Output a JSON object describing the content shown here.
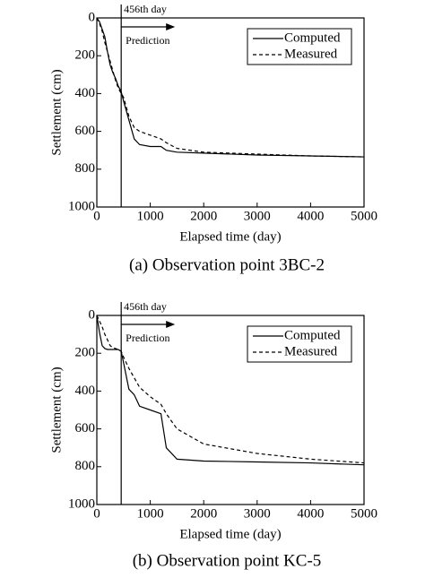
{
  "chart_data": [
    {
      "type": "line",
      "caption": "(a) Observation point 3BC-2",
      "x_label": "Elapsed time (day)",
      "y_label": "Settlement (cm)",
      "x": [
        0,
        50,
        100,
        150,
        200,
        250,
        300,
        350,
        400,
        456,
        500,
        600,
        700,
        800,
        1000,
        1200,
        1300,
        1500,
        2000,
        3000,
        4000,
        5000
      ],
      "series": [
        {
          "name": "Computed",
          "color": "#000000",
          "linestyle": "solid",
          "values": [
            0,
            20,
            60,
            100,
            180,
            250,
            290,
            320,
            360,
            390,
            440,
            540,
            640,
            670,
            680,
            680,
            700,
            710,
            715,
            725,
            730,
            735
          ]
        },
        {
          "name": "Measured",
          "color": "#000000",
          "linestyle": "dashed",
          "values": [
            0,
            30,
            70,
            130,
            180,
            230,
            280,
            330,
            370,
            400,
            420,
            520,
            580,
            600,
            620,
            640,
            660,
            690,
            710,
            720,
            730,
            735
          ]
        }
      ],
      "xlim": [
        0,
        5000
      ],
      "xticks": [
        0,
        1000,
        2000,
        3000,
        4000,
        5000
      ],
      "ylim": [
        0,
        1000
      ],
      "yticks": [
        0,
        200,
        400,
        600,
        800,
        1000
      ],
      "y_inverted": true,
      "legend": "upper right",
      "prediction_start": {
        "value": 456,
        "label": "456th day"
      },
      "prediction_label": "Prediction"
    },
    {
      "type": "line",
      "caption": "(b) Observation point KC-5",
      "x_label": "Elapsed time (day)",
      "y_label": "Settlement (cm)",
      "x": [
        0,
        50,
        100,
        150,
        200,
        250,
        300,
        350,
        400,
        456,
        500,
        600,
        700,
        800,
        1000,
        1200,
        1300,
        1500,
        2000,
        3000,
        4000,
        5000
      ],
      "series": [
        {
          "name": "Computed",
          "color": "#000000",
          "linestyle": "solid",
          "values": [
            0,
            90,
            160,
            175,
            180,
            180,
            180,
            180,
            180,
            190,
            250,
            390,
            420,
            480,
            500,
            520,
            700,
            760,
            770,
            775,
            780,
            790
          ]
        },
        {
          "name": "Measured",
          "color": "#000000",
          "linestyle": "dashed",
          "values": [
            0,
            30,
            60,
            100,
            130,
            160,
            170,
            175,
            180,
            190,
            220,
            280,
            330,
            380,
            430,
            470,
            520,
            600,
            680,
            730,
            760,
            780
          ]
        }
      ],
      "xlim": [
        0,
        5000
      ],
      "xticks": [
        0,
        1000,
        2000,
        3000,
        4000,
        5000
      ],
      "ylim": [
        0,
        1000
      ],
      "yticks": [
        0,
        200,
        400,
        600,
        800,
        1000
      ],
      "y_inverted": true,
      "legend": "upper right",
      "prediction_start": {
        "value": 456,
        "label": "456th day"
      },
      "prediction_label": "Prediction"
    }
  ]
}
